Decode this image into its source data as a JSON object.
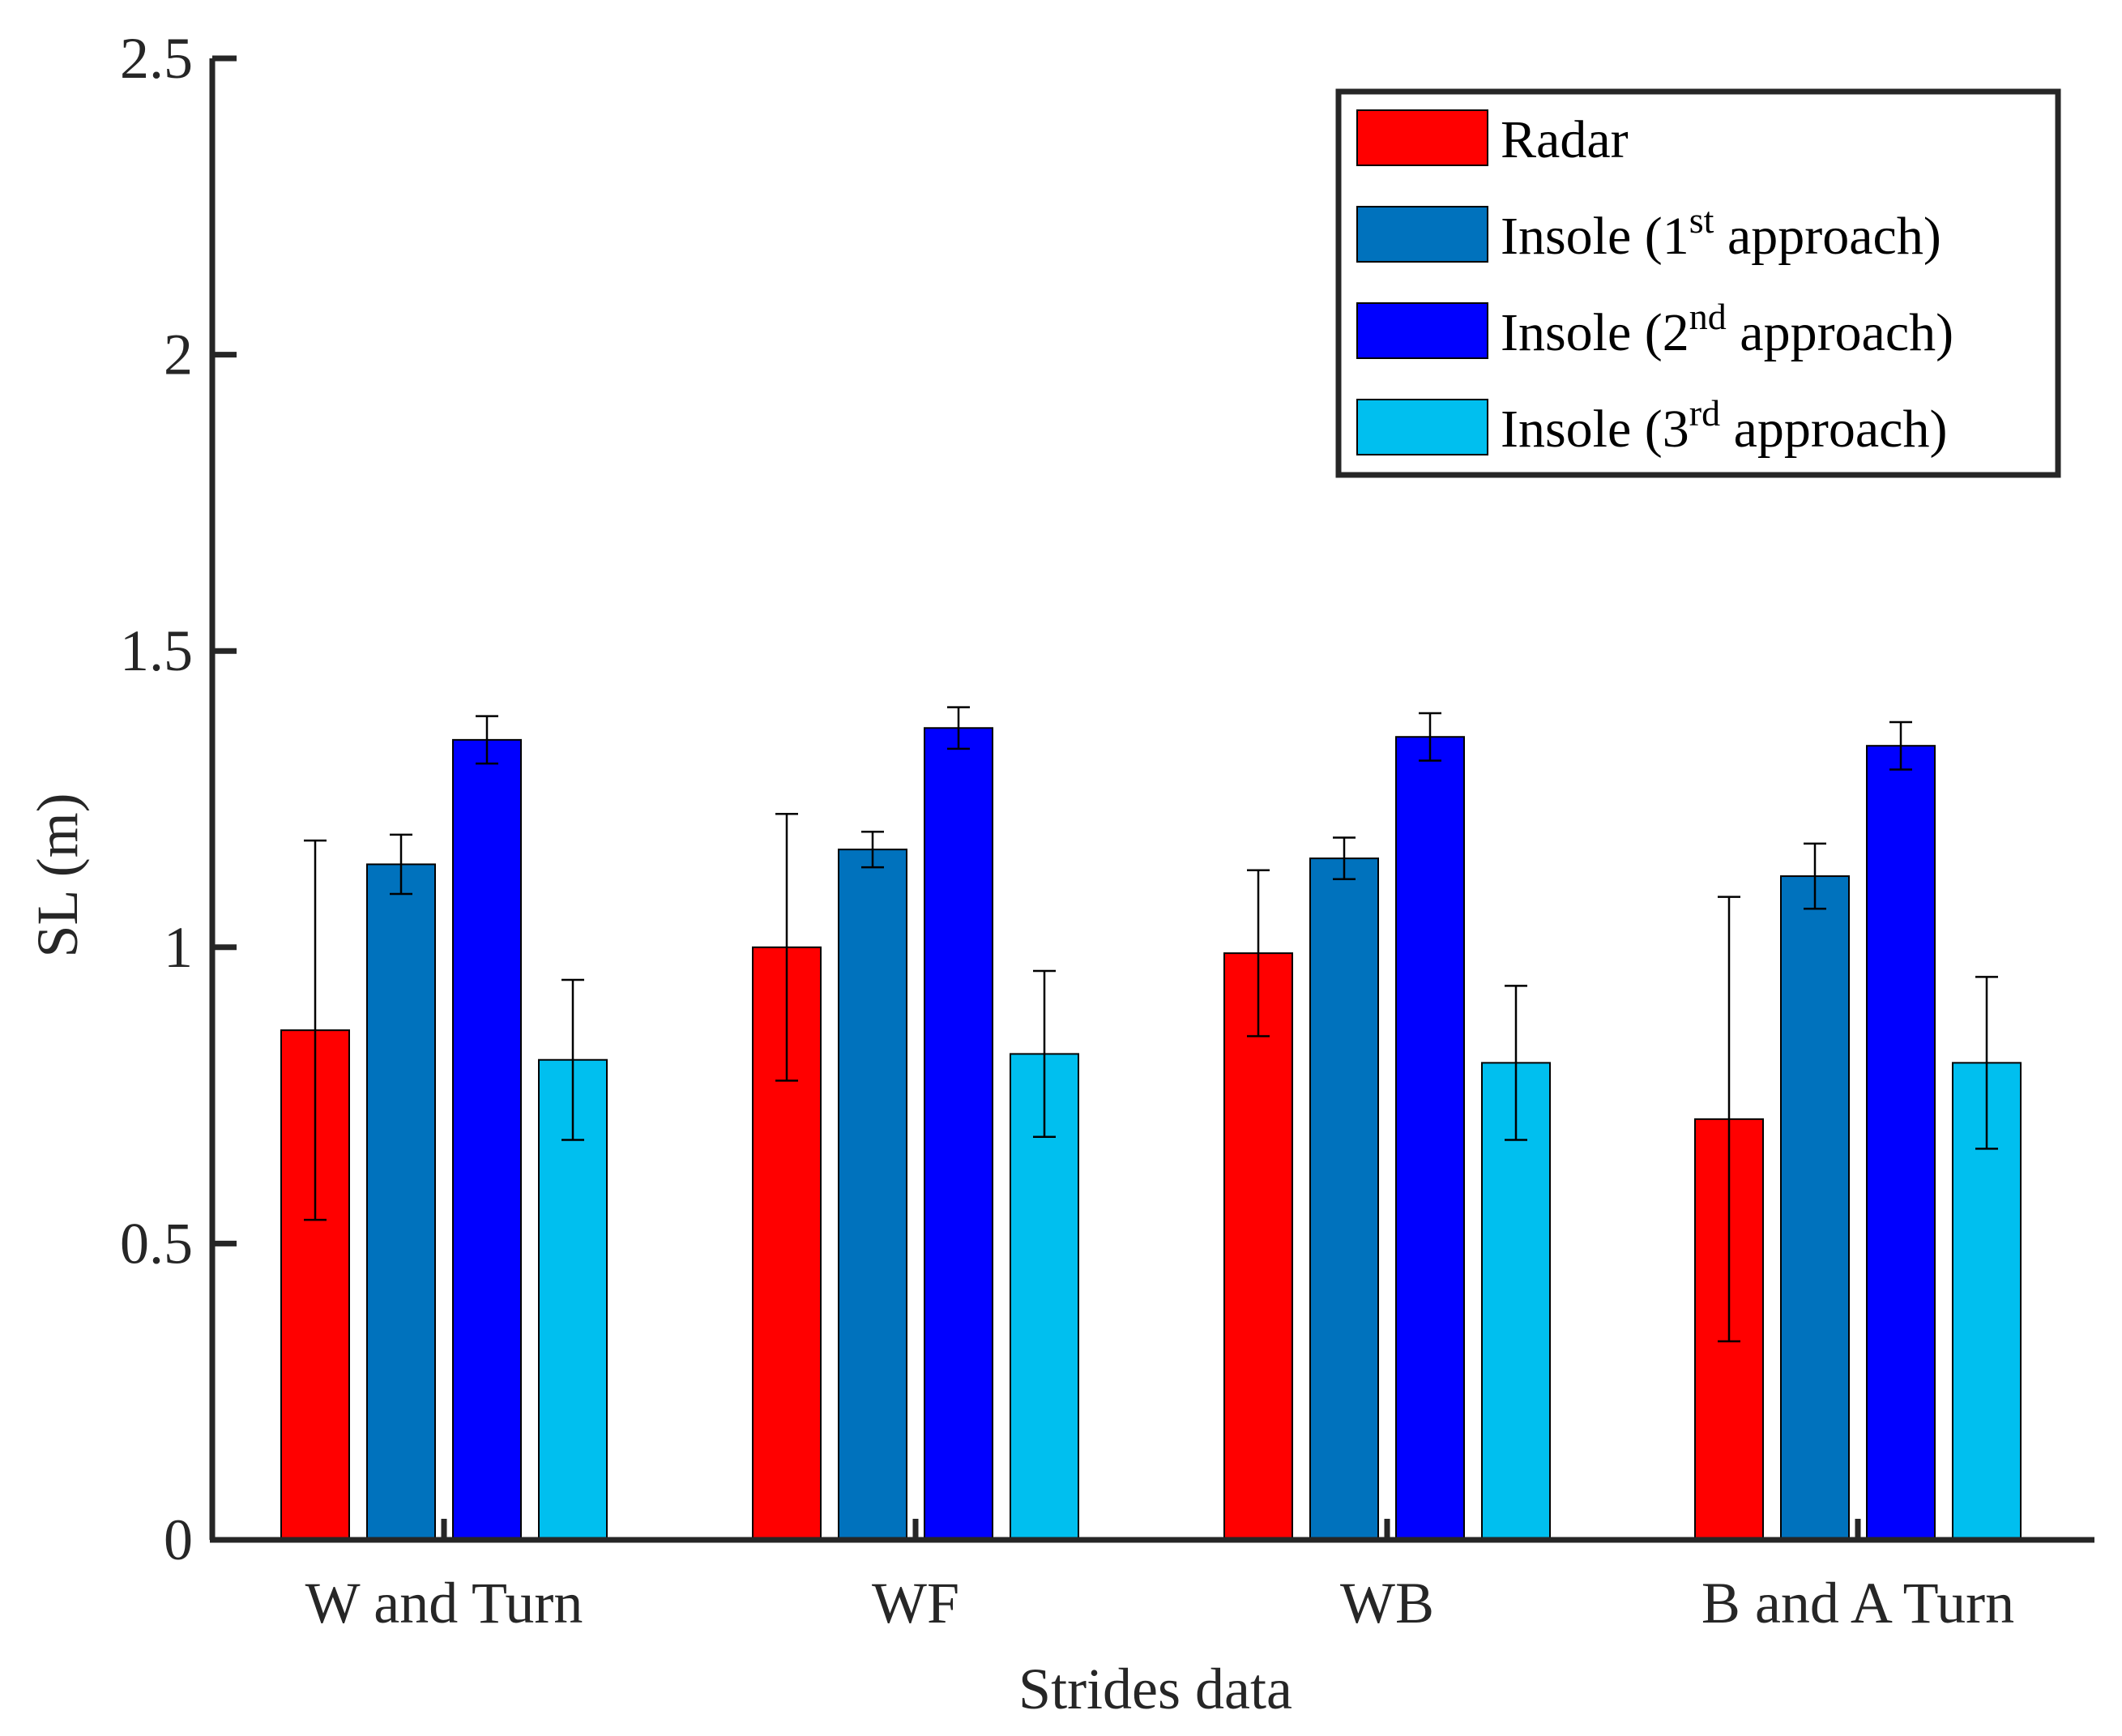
{
  "chart_data": {
    "type": "bar",
    "title": "",
    "xlabel": "Strides data",
    "ylabel": "SL (m)",
    "ylim": [
      0,
      2.5
    ],
    "yticks": [
      0,
      0.5,
      1,
      1.5,
      2,
      2.5
    ],
    "ytick_labels": [
      "0",
      "0.5",
      "1",
      "1.5",
      "2",
      "2.5"
    ],
    "grid": false,
    "legend_position": "top-right",
    "categories": [
      "W and Turn",
      "WF",
      "WB",
      "B and A Turn"
    ],
    "series": [
      {
        "name": "Radar",
        "legend": {
          "base": "Radar",
          "sup": "",
          "suffix": ""
        },
        "color": "#ff0000",
        "values": [
          0.86,
          1.0,
          0.99,
          0.71
        ],
        "errors": [
          0.32,
          0.225,
          0.14,
          0.375
        ]
      },
      {
        "name": "Insole (1st approach)",
        "legend": {
          "base": "Insole (1",
          "sup": "st",
          "suffix": " approach)"
        },
        "color": "#0072bd",
        "values": [
          1.14,
          1.165,
          1.15,
          1.12
        ],
        "errors": [
          0.05,
          0.03,
          0.035,
          0.055
        ]
      },
      {
        "name": "Insole (2nd approach)",
        "legend": {
          "base": "Insole (2",
          "sup": "nd",
          "suffix": " approach)"
        },
        "color": "#0000ff",
        "values": [
          1.35,
          1.37,
          1.355,
          1.34
        ],
        "errors": [
          0.04,
          0.035,
          0.04,
          0.04
        ]
      },
      {
        "name": "Insole (3rd approach)",
        "legend": {
          "base": "Insole (3",
          "sup": "rd",
          "suffix": " approach)"
        },
        "color": "#00bfef",
        "values": [
          0.81,
          0.82,
          0.805,
          0.805
        ],
        "errors": [
          0.135,
          0.14,
          0.13,
          0.145
        ]
      }
    ]
  }
}
